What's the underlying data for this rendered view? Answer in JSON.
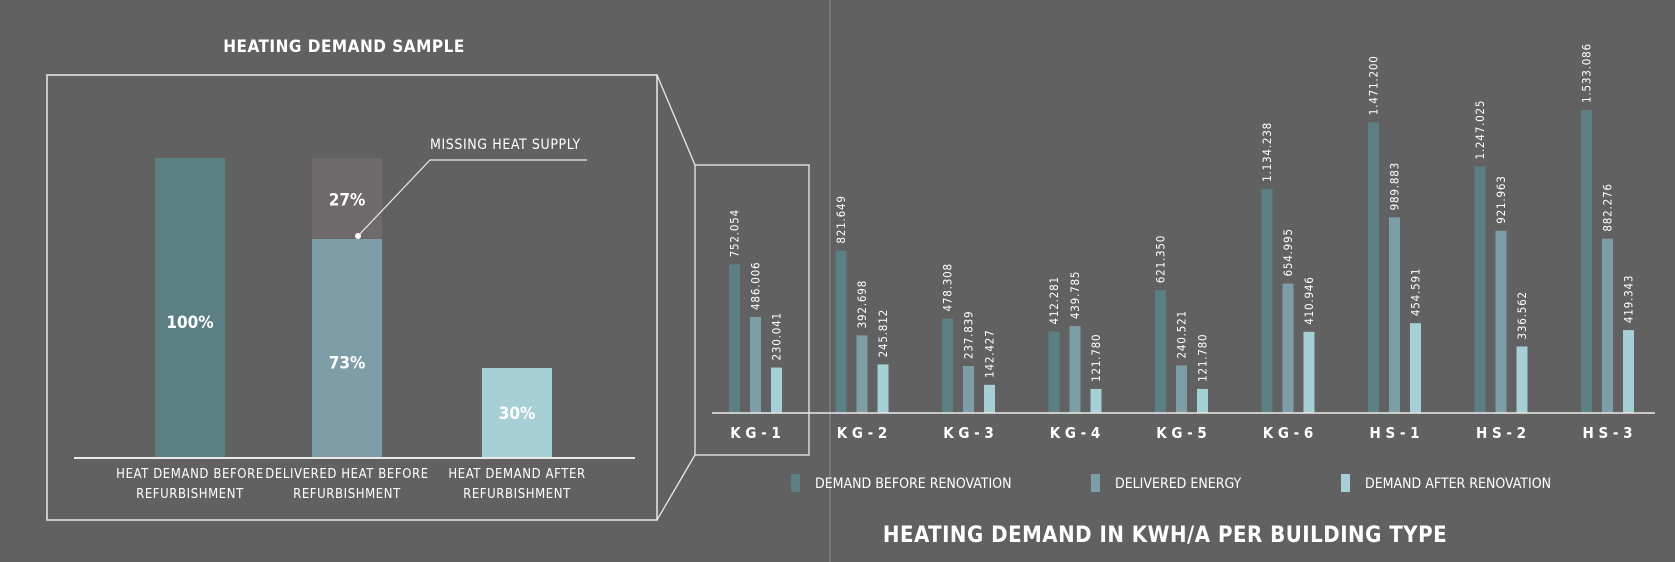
{
  "colors": {
    "background": "#616161",
    "demand_before": "#5c7f84",
    "delivered": "#7d9ea7",
    "demand_after": "#a7cfd6",
    "missing": "#6e6a6c",
    "line": "#e9e9e9"
  },
  "chart_data": [
    {
      "type": "bar",
      "title": "HEATING DEMAND SAMPLE",
      "categories": [
        "HEAT DEMAND BEFORE REFURBISHMENT",
        "DELIVERED HEAT BEFORE REFURBISHMENT",
        "HEAT DEMAND AFTER REFURBISHMENT"
      ],
      "category_lines": [
        [
          "HEAT DEMAND BEFORE",
          "REFURBISHMENT"
        ],
        [
          "DELIVERED HEAT BEFORE",
          "REFURBISHMENT"
        ],
        [
          "HEAT DEMAND AFTER",
          "REFURBISHMENT"
        ]
      ],
      "stacked": true,
      "values": [
        100,
        73,
        30
      ],
      "missing_values": [
        0,
        27,
        0
      ],
      "labels": [
        "100%",
        "73%",
        "30%"
      ],
      "missing_label": "27%",
      "annotation": "MISSING HEAT SUPPLY",
      "ylim": [
        0,
        100
      ]
    },
    {
      "type": "bar",
      "title": "HEATING DEMAND IN KWH/A PER BUILDING TYPE",
      "categories": [
        "KG-1",
        "KG-2",
        "KG-3",
        "KG-4",
        "KG-5",
        "KG-6",
        "HS-1",
        "HS-2",
        "HS-3"
      ],
      "category_display": [
        "K G - 1",
        "K G - 2",
        "K G - 3",
        "K G - 4",
        "K G - 5",
        "K G - 6",
        "H S - 1",
        "H S - 2",
        "H S - 3"
      ],
      "series": [
        {
          "name": "DEMAND BEFORE RENOVATION",
          "values": [
            752054,
            821649,
            478308,
            412281,
            621350,
            1134238,
            1471200,
            1247025,
            1533086
          ],
          "labels": [
            "752.054",
            "821.649",
            "478.308",
            "412.281",
            "621.350",
            "1.134.238",
            "1.471.200",
            "1.247.025",
            "1.533.086"
          ]
        },
        {
          "name": "DELIVERED ENERGY",
          "values": [
            486006,
            392698,
            237839,
            439785,
            240521,
            654995,
            989883,
            921963,
            882276
          ],
          "labels": [
            "486.006",
            "392.698",
            "237.839",
            "439.785",
            "240.521",
            "654.995",
            "989.883",
            "921.963",
            "882.276"
          ]
        },
        {
          "name": "DEMAND AFTER RENOVATION",
          "values": [
            230041,
            245812,
            142427,
            121780,
            121780,
            410946,
            454591,
            336562,
            419343
          ],
          "labels": [
            "230.041",
            "245.812",
            "142.427",
            "121.780",
            "121.780",
            "410.946",
            "454.591",
            "336.562",
            "419.343"
          ]
        }
      ],
      "highlighted_category": "KG-1",
      "legend_position": "bottom",
      "ylim": [
        0,
        1600000
      ]
    }
  ]
}
